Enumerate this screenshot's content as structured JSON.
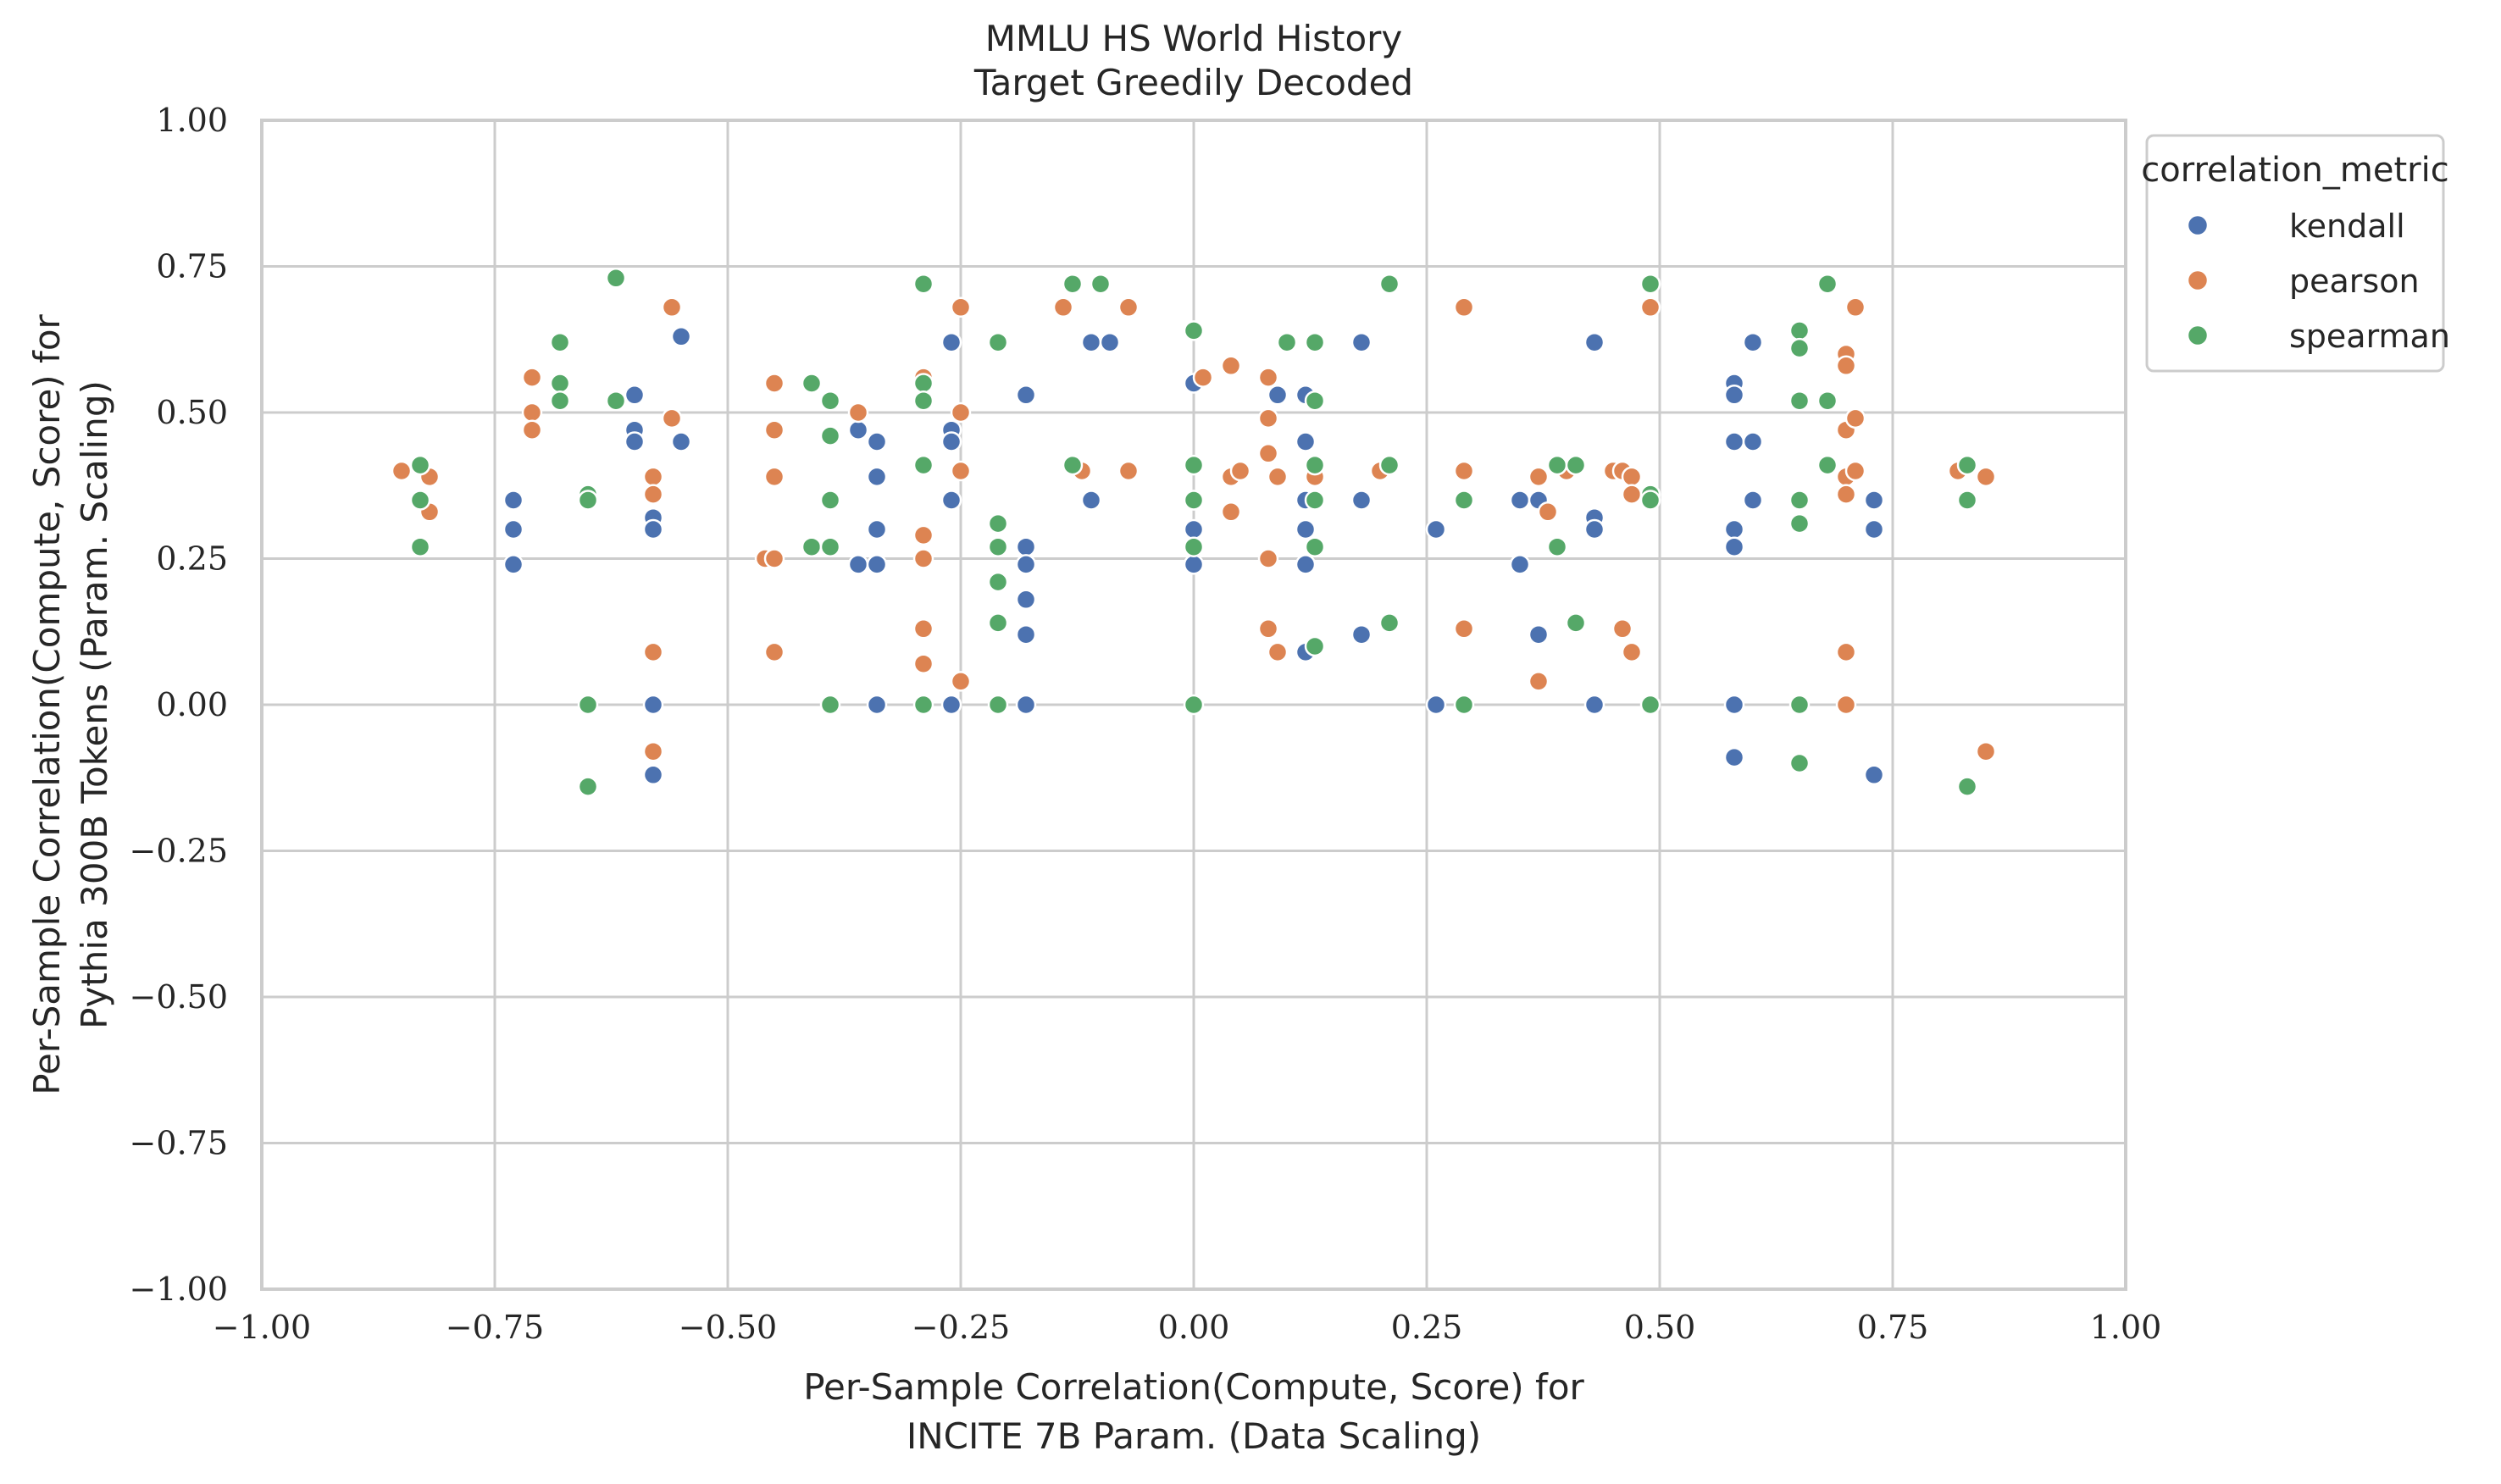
{
  "chart_data": {
    "type": "scatter",
    "title": [
      "MMLU HS World History",
      "Target Greedily Decoded"
    ],
    "xlabel": [
      "Per-Sample Correlation(Compute, Score) for",
      "INCITE 7B Param. (Data Scaling)"
    ],
    "ylabel": [
      "Per-Sample Correlation(Compute, Score) for",
      "Pythia 300B Tokens (Param. Scaling)"
    ],
    "xlim": [
      -1.0,
      1.0
    ],
    "ylim": [
      -1.0,
      1.0
    ],
    "x_ticks": [
      "−1.00",
      "−0.75",
      "−0.50",
      "−0.25",
      "0.00",
      "0.25",
      "0.50",
      "0.75",
      "1.00"
    ],
    "y_ticks": [
      "−1.00",
      "−0.75",
      "−0.50",
      "−0.25",
      "0.00",
      "0.25",
      "0.50",
      "0.75",
      "1.00"
    ],
    "grid": true,
    "legend": {
      "title": "correlation_metric",
      "placement": "outside-right-top"
    },
    "series": [
      {
        "name": "kendall",
        "color": "#4c72b0",
        "points": [
          [
            -0.73,
            0.35
          ],
          [
            -0.73,
            0.3
          ],
          [
            -0.73,
            0.24
          ],
          [
            -0.6,
            0.53
          ],
          [
            -0.6,
            0.47
          ],
          [
            -0.6,
            0.45
          ],
          [
            -0.58,
            0.32
          ],
          [
            -0.58,
            0.3
          ],
          [
            -0.58,
            0.0
          ],
          [
            -0.58,
            -0.12
          ],
          [
            -0.55,
            0.63
          ],
          [
            -0.55,
            0.45
          ],
          [
            -0.36,
            0.47
          ],
          [
            -0.36,
            0.24
          ],
          [
            -0.34,
            0.45
          ],
          [
            -0.34,
            0.39
          ],
          [
            -0.34,
            0.3
          ],
          [
            -0.34,
            0.24
          ],
          [
            -0.34,
            0.0
          ],
          [
            -0.26,
            0.62
          ],
          [
            -0.26,
            0.47
          ],
          [
            -0.26,
            0.45
          ],
          [
            -0.26,
            0.35
          ],
          [
            -0.26,
            0.0
          ],
          [
            -0.18,
            0.53
          ],
          [
            -0.18,
            0.27
          ],
          [
            -0.18,
            0.24
          ],
          [
            -0.18,
            0.18
          ],
          [
            -0.18,
            0.12
          ],
          [
            -0.18,
            0.0
          ],
          [
            -0.11,
            0.62
          ],
          [
            -0.11,
            0.35
          ],
          [
            -0.09,
            0.62
          ],
          [
            0.0,
            0.55
          ],
          [
            0.0,
            0.35
          ],
          [
            0.0,
            0.3
          ],
          [
            0.0,
            0.24
          ],
          [
            0.09,
            0.53
          ],
          [
            0.12,
            0.53
          ],
          [
            0.12,
            0.45
          ],
          [
            0.12,
            0.35
          ],
          [
            0.12,
            0.3
          ],
          [
            0.12,
            0.24
          ],
          [
            0.12,
            0.09
          ],
          [
            0.18,
            0.62
          ],
          [
            0.18,
            0.35
          ],
          [
            0.18,
            0.12
          ],
          [
            0.26,
            0.3
          ],
          [
            0.26,
            0.0
          ],
          [
            0.35,
            0.35
          ],
          [
            0.35,
            0.24
          ],
          [
            0.37,
            0.35
          ],
          [
            0.37,
            0.12
          ],
          [
            0.43,
            0.62
          ],
          [
            0.43,
            0.32
          ],
          [
            0.43,
            0.3
          ],
          [
            0.43,
            0.0
          ],
          [
            0.58,
            0.55
          ],
          [
            0.58,
            0.53
          ],
          [
            0.58,
            0.45
          ],
          [
            0.58,
            0.3
          ],
          [
            0.58,
            0.27
          ],
          [
            0.58,
            0.0
          ],
          [
            0.58,
            -0.09
          ],
          [
            0.6,
            0.62
          ],
          [
            0.6,
            0.45
          ],
          [
            0.6,
            0.35
          ],
          [
            0.73,
            0.35
          ],
          [
            0.73,
            0.3
          ],
          [
            0.73,
            -0.12
          ]
        ]
      },
      {
        "name": "pearson",
        "color": "#dd8452",
        "points": [
          [
            -0.85,
            0.4
          ],
          [
            -0.82,
            0.39
          ],
          [
            -0.82,
            0.33
          ],
          [
            -0.71,
            0.56
          ],
          [
            -0.71,
            0.5
          ],
          [
            -0.71,
            0.47
          ],
          [
            -0.58,
            0.39
          ],
          [
            -0.58,
            0.36
          ],
          [
            -0.58,
            0.09
          ],
          [
            -0.58,
            -0.08
          ],
          [
            -0.56,
            0.68
          ],
          [
            -0.56,
            0.49
          ],
          [
            -0.46,
            0.25
          ],
          [
            -0.45,
            0.55
          ],
          [
            -0.45,
            0.47
          ],
          [
            -0.45,
            0.39
          ],
          [
            -0.45,
            0.25
          ],
          [
            -0.45,
            0.09
          ],
          [
            -0.36,
            0.5
          ],
          [
            -0.29,
            0.56
          ],
          [
            -0.29,
            0.29
          ],
          [
            -0.29,
            0.25
          ],
          [
            -0.29,
            0.13
          ],
          [
            -0.29,
            0.07
          ],
          [
            -0.25,
            0.68
          ],
          [
            -0.25,
            0.5
          ],
          [
            -0.25,
            0.4
          ],
          [
            -0.25,
            0.04
          ],
          [
            -0.14,
            0.68
          ],
          [
            -0.12,
            0.4
          ],
          [
            -0.07,
            0.68
          ],
          [
            -0.07,
            0.4
          ],
          [
            0.01,
            0.56
          ],
          [
            0.04,
            0.58
          ],
          [
            0.04,
            0.39
          ],
          [
            0.04,
            0.33
          ],
          [
            0.05,
            0.4
          ],
          [
            0.08,
            0.56
          ],
          [
            0.08,
            0.49
          ],
          [
            0.08,
            0.43
          ],
          [
            0.08,
            0.25
          ],
          [
            0.08,
            0.13
          ],
          [
            0.09,
            0.39
          ],
          [
            0.09,
            0.09
          ],
          [
            0.13,
            0.39
          ],
          [
            0.2,
            0.4
          ],
          [
            0.29,
            0.68
          ],
          [
            0.29,
            0.4
          ],
          [
            0.29,
            0.13
          ],
          [
            0.37,
            0.39
          ],
          [
            0.37,
            0.04
          ],
          [
            0.38,
            0.33
          ],
          [
            0.4,
            0.4
          ],
          [
            0.45,
            0.4
          ],
          [
            0.46,
            0.4
          ],
          [
            0.46,
            0.13
          ],
          [
            0.47,
            0.39
          ],
          [
            0.47,
            0.36
          ],
          [
            0.47,
            0.09
          ],
          [
            0.49,
            0.68
          ],
          [
            0.7,
            0.6
          ],
          [
            0.7,
            0.58
          ],
          [
            0.7,
            0.47
          ],
          [
            0.7,
            0.39
          ],
          [
            0.7,
            0.36
          ],
          [
            0.7,
            0.09
          ],
          [
            0.7,
            0.0
          ],
          [
            0.71,
            0.68
          ],
          [
            0.71,
            0.49
          ],
          [
            0.71,
            0.4
          ],
          [
            0.82,
            0.4
          ],
          [
            0.85,
            0.39
          ],
          [
            0.85,
            -0.08
          ]
        ]
      },
      {
        "name": "spearman",
        "color": "#55a868",
        "points": [
          [
            -0.83,
            0.41
          ],
          [
            -0.83,
            0.35
          ],
          [
            -0.83,
            0.27
          ],
          [
            -0.68,
            0.62
          ],
          [
            -0.68,
            0.55
          ],
          [
            -0.68,
            0.52
          ],
          [
            -0.65,
            0.36
          ],
          [
            -0.65,
            0.35
          ],
          [
            -0.65,
            0.0
          ],
          [
            -0.65,
            -0.14
          ],
          [
            -0.62,
            0.73
          ],
          [
            -0.62,
            0.52
          ],
          [
            -0.41,
            0.55
          ],
          [
            -0.41,
            0.27
          ],
          [
            -0.39,
            0.52
          ],
          [
            -0.39,
            0.46
          ],
          [
            -0.39,
            0.35
          ],
          [
            -0.39,
            0.27
          ],
          [
            -0.39,
            0.0
          ],
          [
            -0.29,
            0.72
          ],
          [
            -0.29,
            0.55
          ],
          [
            -0.29,
            0.52
          ],
          [
            -0.29,
            0.41
          ],
          [
            -0.29,
            0.0
          ],
          [
            -0.21,
            0.62
          ],
          [
            -0.21,
            0.31
          ],
          [
            -0.21,
            0.27
          ],
          [
            -0.21,
            0.21
          ],
          [
            -0.21,
            0.14
          ],
          [
            -0.21,
            0.0
          ],
          [
            -0.13,
            0.72
          ],
          [
            -0.13,
            0.41
          ],
          [
            -0.1,
            0.72
          ],
          [
            0.0,
            0.64
          ],
          [
            0.0,
            0.41
          ],
          [
            0.0,
            0.35
          ],
          [
            0.0,
            0.27
          ],
          [
            0.0,
            0.0
          ],
          [
            0.1,
            0.62
          ],
          [
            0.13,
            0.62
          ],
          [
            0.13,
            0.52
          ],
          [
            0.13,
            0.41
          ],
          [
            0.13,
            0.35
          ],
          [
            0.13,
            0.27
          ],
          [
            0.13,
            0.1
          ],
          [
            0.21,
            0.72
          ],
          [
            0.21,
            0.41
          ],
          [
            0.21,
            0.14
          ],
          [
            0.29,
            0.35
          ],
          [
            0.29,
            0.0
          ],
          [
            0.39,
            0.41
          ],
          [
            0.39,
            0.27
          ],
          [
            0.41,
            0.41
          ],
          [
            0.41,
            0.14
          ],
          [
            0.49,
            0.72
          ],
          [
            0.49,
            0.36
          ],
          [
            0.49,
            0.35
          ],
          [
            0.49,
            0.0
          ],
          [
            0.65,
            0.64
          ],
          [
            0.65,
            0.61
          ],
          [
            0.65,
            0.52
          ],
          [
            0.65,
            0.35
          ],
          [
            0.65,
            0.31
          ],
          [
            0.65,
            0.0
          ],
          [
            0.65,
            -0.1
          ],
          [
            0.68,
            0.72
          ],
          [
            0.68,
            0.52
          ],
          [
            0.68,
            0.41
          ],
          [
            0.83,
            0.41
          ],
          [
            0.83,
            0.35
          ],
          [
            0.83,
            -0.14
          ]
        ]
      }
    ]
  }
}
